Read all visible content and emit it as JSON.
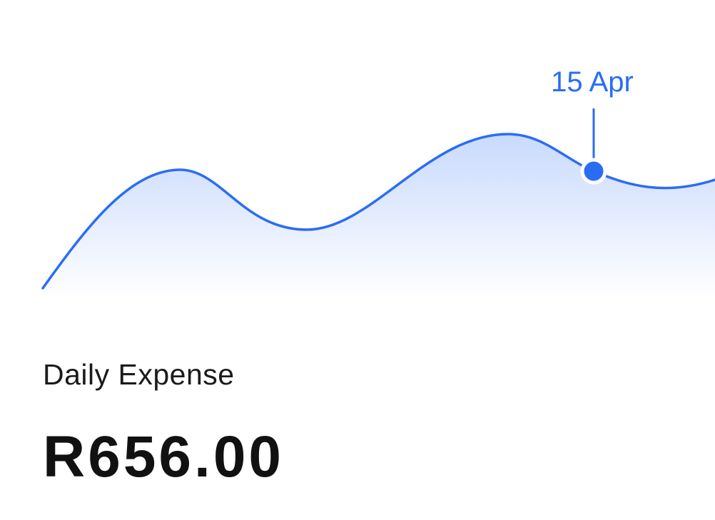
{
  "summary": {
    "label": "Daily Expense",
    "amount": "R656.00"
  },
  "marker": {
    "label": "15 Apr"
  },
  "colors": {
    "accent": "#2a6df4",
    "fill_top": "#c9dafd",
    "fill_bottom": "#ffffff",
    "text": "#111111"
  }
}
